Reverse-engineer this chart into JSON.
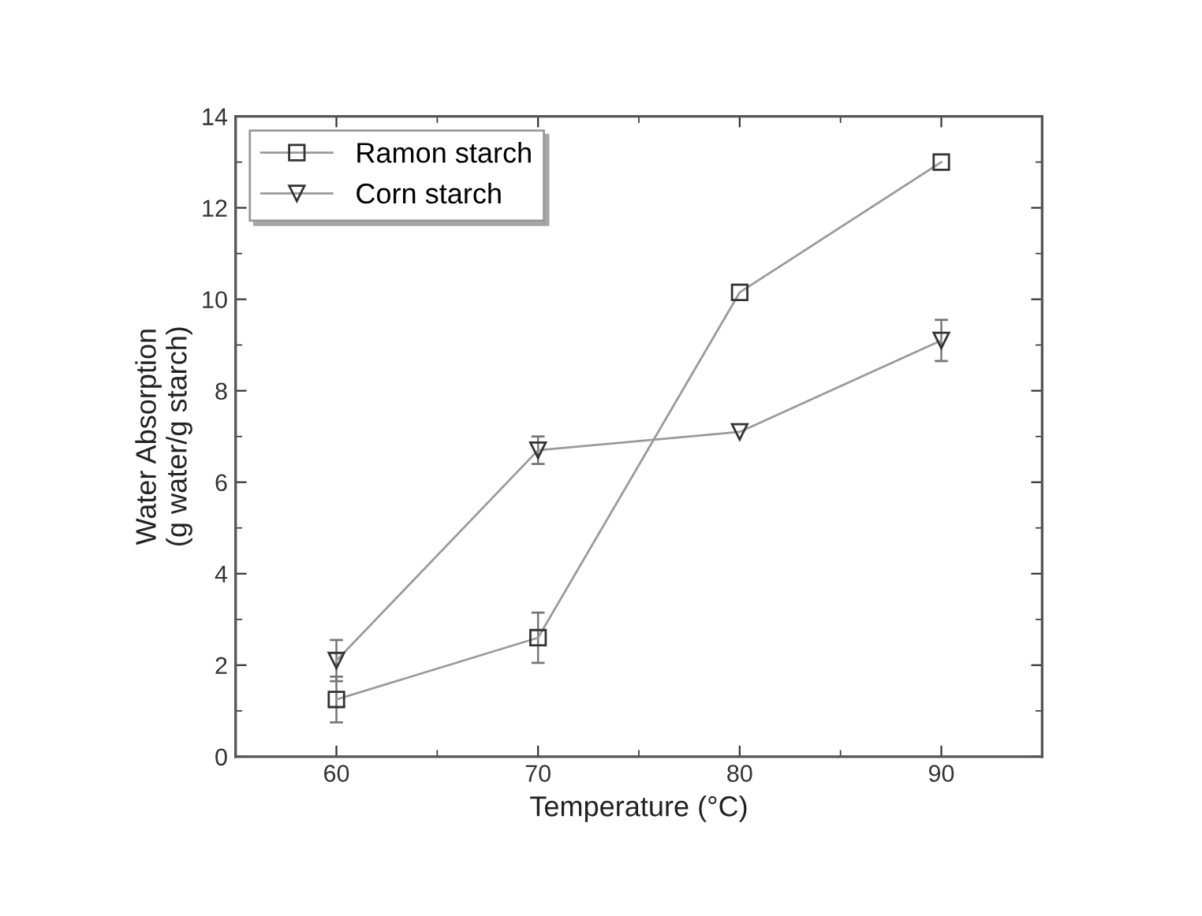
{
  "chart_data": {
    "type": "line",
    "xlabel": "Temperature (°C)",
    "ylabel": "Water Absorption\n(g water/g starch)",
    "x": [
      60,
      70,
      80,
      90
    ],
    "series": [
      {
        "name": "Ramon starch",
        "color": "#9a9a9a",
        "marker": "square",
        "values": [
          1.25,
          2.6,
          10.15,
          13.0
        ],
        "errors": [
          0.5,
          0.55,
          null,
          null
        ]
      },
      {
        "name": "Corn starch",
        "color": "#9a9a9a",
        "marker": "triangle",
        "values": [
          2.1,
          6.7,
          7.1,
          9.1
        ],
        "errors": [
          0.45,
          0.3,
          null,
          0.45
        ]
      }
    ],
    "xlim": [
      55,
      95
    ],
    "xticks": [
      60,
      70,
      80,
      90
    ],
    "ylim": [
      0,
      14
    ],
    "yticks": [
      0,
      2,
      4,
      6,
      8,
      10,
      12,
      14
    ],
    "grid": false,
    "legend": "top left",
    "line_style": "solid"
  }
}
